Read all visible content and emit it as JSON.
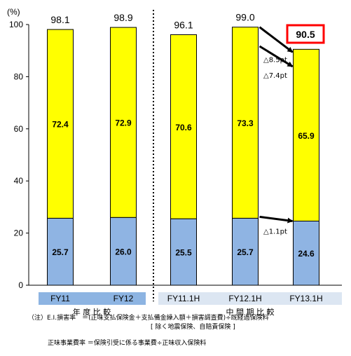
{
  "chart_data": {
    "type": "bar",
    "stacked": true,
    "y_unit": "(%)",
    "ylim": [
      0,
      100
    ],
    "yticks": [
      0,
      20,
      40,
      60,
      80,
      100
    ],
    "categories": [
      "FY11",
      "FY12",
      "FY11.1H",
      "FY12.1H",
      "FY13.1H"
    ],
    "series": [
      {
        "values": [
          25.7,
          26.0,
          25.5,
          25.7,
          24.6
        ],
        "color": "#8fb4e3"
      },
      {
        "values": [
          72.4,
          72.9,
          70.6,
          73.3,
          65.9
        ],
        "color": "#ffff00"
      }
    ],
    "totals": [
      "98.1",
      "98.9",
      "96.1",
      "99.0",
      "90.5"
    ],
    "highlight_total_index": 4,
    "highlight_color": "#ff0000",
    "groups": [
      {
        "label": "年 度 比 較",
        "categories": [
          "FY11",
          "FY12"
        ],
        "band_color": "#8db4e2"
      },
      {
        "label": "中 間 期 比 較",
        "categories": [
          "FY11.1H",
          "FY12.1H",
          "FY13.1H"
        ],
        "band_color": "#dce6f2"
      }
    ],
    "annotations": [
      {
        "text": "△8.5pt",
        "from_category": "FY12.1H",
        "to_category": "FY13.1H",
        "level": "total"
      },
      {
        "text": "△7.4pt",
        "from_category": "FY12.1H",
        "to_category": "FY13.1H",
        "level": "series2"
      },
      {
        "text": "△1.1pt",
        "from_category": "FY12.1H",
        "to_category": "FY13.1H",
        "level": "series1"
      }
    ],
    "grid": false
  },
  "notes": {
    "line1": "（注）E.I.損害率　＝(正味支払保険金＋支払備金繰入額＋損害調査費)÷既経過保険料",
    "line2": "[ 除く地震保険、自賠責保険 ]",
    "line3": "正味事業費率 ＝保険引受に係る事業費÷正味収入保険料"
  }
}
